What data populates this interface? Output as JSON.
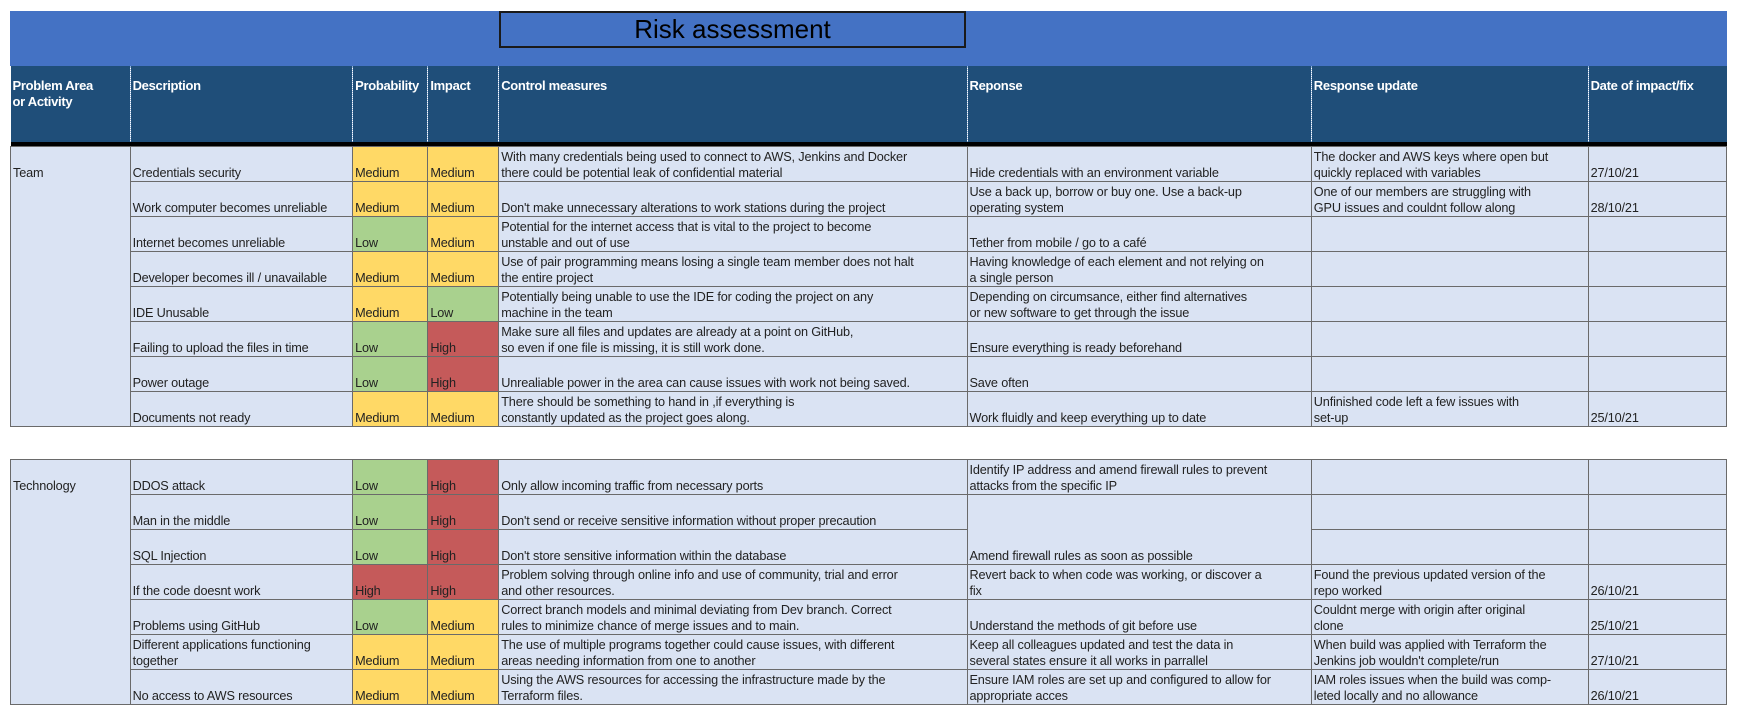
{
  "title": "Risk assessment",
  "colors": {
    "banner": "#4472c4",
    "header": "#1f4e79",
    "cell": "#dae3f3",
    "low": "#a9d18e",
    "medium": "#ffd966",
    "high": "#c55a5a"
  },
  "headers": {
    "area": "Problem Area\nor Activity",
    "description": "Description",
    "probability": "Probability",
    "impact": "Impact",
    "control": "Control measures",
    "response": "Reponse",
    "update": "Response update",
    "date": "Date of impact/fix"
  },
  "team": {
    "area": "Team",
    "rows": [
      {
        "description": "Credentials security",
        "probability": "Medium",
        "impact": "Medium",
        "control": "With many credentials being used to connect to AWS, Jenkins and Docker\nthere could be potential leak of confidential material",
        "response": "Hide credentials with an environment variable",
        "update": "The docker and AWS keys where open but\nquickly replaced with variables",
        "date": "27/10/21"
      },
      {
        "description": "Work computer becomes unreliable",
        "probability": "Medium",
        "impact": "Medium",
        "control": "Don't make unnecessary alterations to work stations during the project",
        "response": "Use a back up, borrow or buy one. Use a back-up\noperating system",
        "update": "One of our members are struggling with\nGPU issues and couldnt follow along",
        "date": "28/10/21"
      },
      {
        "description": "Internet becomes unreliable",
        "probability": "Low",
        "impact": "Medium",
        "control": "Potential for the internet access that is vital to the project to become\nunstable and out of use",
        "response": "Tether from mobile / go to a café",
        "update": "",
        "date": ""
      },
      {
        "description": "Developer becomes ill / unavailable",
        "probability": "Medium",
        "impact": "Medium",
        "control": "Use of pair programming means losing a single team member does not halt\nthe entire project",
        "response": "Having knowledge of each element and not relying on\na single person",
        "update": "",
        "date": ""
      },
      {
        "description": "IDE Unusable",
        "probability": " Medium",
        "impact": " Low",
        "control": " Potentially being unable to use the IDE for coding the project on any\nmachine in the team",
        "response": " Depending on circumsance, either find alternatives\nor new software to get through the issue",
        "update": "",
        "date": ""
      },
      {
        "description": "Failing to upload the files in time",
        "probability": "Low",
        "impact": "High",
        "control": "Make sure all files and updates are already at a point on GitHub,\n so even if one file is missing, it is still work done.",
        "response": "Ensure everything is ready beforehand",
        "update": "",
        "date": ""
      },
      {
        "description": "Power outage",
        "probability": "Low",
        "impact": "High",
        "control": "Unrealiable power in the area can cause issues with work not being saved.",
        "response": "Save often",
        "update": "",
        "date": ""
      },
      {
        "description": "Documents not ready",
        "probability": "Medium",
        "impact": "Medium",
        "control": "There should be something to hand in ,if everything is\n constantly updated as the project goes along.",
        "response": "Work fluidly and keep everything up to date",
        "update": "Unfinished code left a few issues with\nset-up",
        "date": "25/10/21"
      }
    ]
  },
  "technology": {
    "area": "Technology",
    "rows": [
      {
        "description": "DDOS attack",
        "probability": "Low",
        "impact": "High",
        "control": "Only allow incoming traffic from necessary ports",
        "response": "Identify IP address and amend firewall rules to prevent\nattacks from the specific IP",
        "update": "",
        "date": ""
      },
      {
        "description": "Man in the middle",
        "probability": "Low",
        "impact": "High",
        "control": "Don't send or receive sensitive information without proper precaution",
        "response": "Amend firewall rules as soon as possible",
        "update": "",
        "date": ""
      },
      {
        "description": "SQL Injection",
        "probability": "Low",
        "impact": "High",
        "control": "Don't store sensitive information within the database",
        "response": "",
        "update": "",
        "date": ""
      },
      {
        "description": "If the code doesnt work",
        "probability": "High",
        "impact": "High",
        "control": "Problem solving through online info and use of community, trial and error\nand other resources.",
        "response": "Revert back to when code was working, or discover a\nfix",
        "update": "Found the previous updated version of the\nrepo worked",
        "date": "26/10/21"
      },
      {
        "description": "Problems using GitHub",
        "probability": "Low",
        "impact": "Medium",
        "control": "Correct branch models and minimal deviating from Dev branch. Correct\nrules to minimize chance of merge issues and to main.",
        "response": "Understand the methods of git before use",
        "update": "Couldnt merge with origin after original\nclone",
        "date": "25/10/21"
      },
      {
        "description": "Different applications functioning\ntogether",
        "probability": "Medium",
        "impact": "Medium",
        "control": "The use of multiple programs together could cause issues, with different\nareas needing information from one to another",
        "response": "Keep all colleagues updated and test the data in\nseveral states ensure it all works in parrallel",
        "update": "When build was applied with Terraform the\nJenkins job wouldn't complete/run",
        "date": "27/10/21"
      },
      {
        "description": "No access to AWS resources",
        "probability": "Medium",
        "impact": "Medium",
        "control": "Using the AWS resources for accessing the infrastructure made by the\nTerraform files.",
        "response": "Ensure IAM roles are set up and configured to allow for\nappropriate acces",
        "update": "IAM roles issues when the build was comp-\nleted locally and no allowance",
        "date": "26/10/21"
      }
    ]
  }
}
